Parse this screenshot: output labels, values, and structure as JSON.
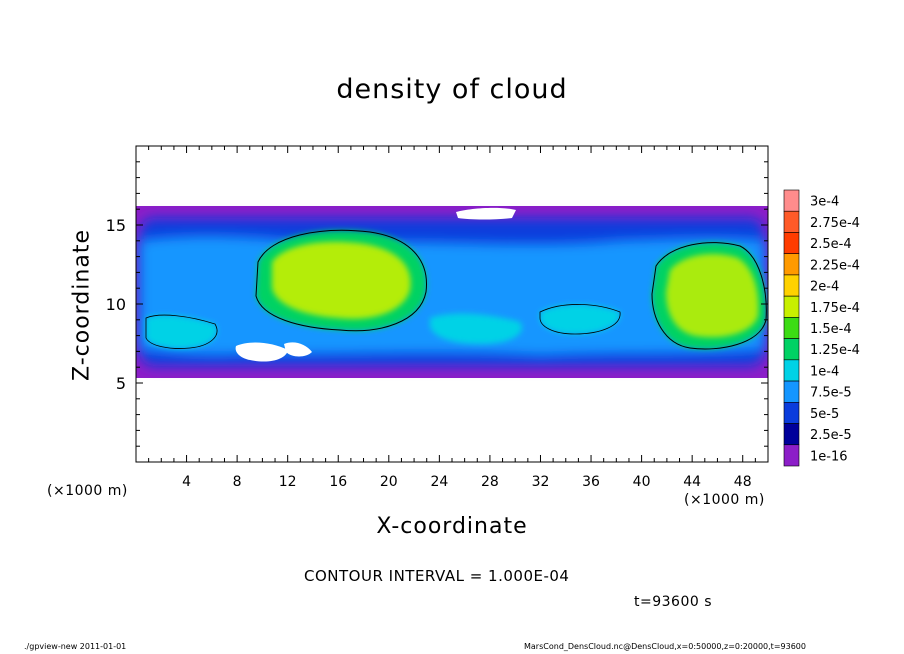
{
  "chart_data": {
    "type": "heatmap",
    "title": "density of cloud",
    "xlabel": "X-coordinate",
    "ylabel": "Z-coordinate",
    "x_unit_label": "(×1000 m)",
    "xlim": [
      0,
      50
    ],
    "ylim": [
      0,
      20
    ],
    "x_ticks": [
      4,
      8,
      12,
      16,
      20,
      24,
      28,
      32,
      36,
      40,
      44,
      48
    ],
    "y_ticks": [
      5,
      10,
      15
    ],
    "colorbar": {
      "labels": [
        "3e-4",
        "2.75e-4",
        "2.5e-4",
        "2.25e-4",
        "2e-4",
        "1.75e-4",
        "1.5e-4",
        "1.25e-4",
        "1e-4",
        "7.5e-5",
        "5e-5",
        "2.5e-5",
        "1e-16"
      ],
      "colors": [
        "#ff8c8c",
        "#ff5a28",
        "#ff3c00",
        "#ff9a00",
        "#ffd200",
        "#c8f000",
        "#3cdc14",
        "#00d264",
        "#00d2e6",
        "#1496ff",
        "#0a3cdc",
        "#00009b",
        "#8c1ec8"
      ]
    },
    "cloud_layer_z_range": [
      5.5,
      16.2
    ],
    "dense_regions": [
      {
        "x_center": 18,
        "z_center": 12.5,
        "max_density": "1.75e-4"
      },
      {
        "x_center": 45,
        "z_center": 11,
        "max_density": "1.75e-4"
      }
    ],
    "grid": false
  },
  "annotations": {
    "contour_interval": "CONTOUR INTERVAL = 1.000E-04",
    "time": "t=93600 s",
    "footer_left": "./gpview-new   2011-01-01",
    "footer_right": "MarsCond_DensCloud.nc@DensCloud,x=0:50000,z=0:20000,t=93600"
  }
}
